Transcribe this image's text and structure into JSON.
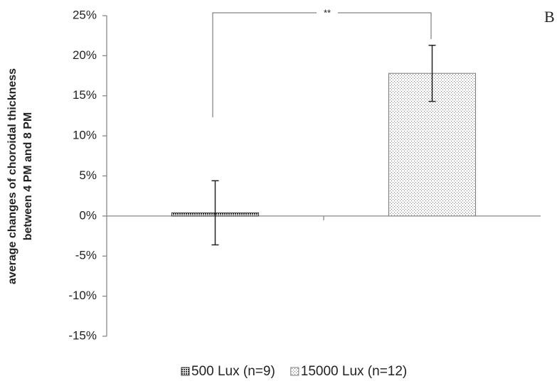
{
  "chart_data": {
    "type": "bar",
    "ylabel": [
      "average changes of choroidal thickness",
      "between 4 PM and 8 PM"
    ],
    "categories": [
      null,
      null
    ],
    "series": [
      {
        "name": "500 Lux (n=9)",
        "color": "#333333",
        "pattern": "checker",
        "values": [
          0.4,
          null
        ],
        "errors": [
          4,
          null
        ]
      },
      {
        "name": "15000 Lux (n=12)",
        "color": "#777777",
        "pattern": "dots",
        "values": [
          null,
          17.8
        ],
        "errors": [
          null,
          3.5
        ]
      }
    ],
    "ylim": [
      -15,
      25
    ],
    "yticks": [
      {
        "value": -15,
        "label": "-15%"
      },
      {
        "value": -10,
        "label": "-10%"
      },
      {
        "value": -5,
        "label": "-5%"
      },
      {
        "value": 0,
        "label": "0%"
      },
      {
        "value": 5,
        "label": "5%"
      },
      {
        "value": 10,
        "label": "10%"
      },
      {
        "value": 15,
        "label": "15%"
      },
      {
        "value": 20,
        "label": "20%"
      },
      {
        "value": 25,
        "label": "25%"
      }
    ],
    "annotations": {
      "significance": "**",
      "panel": "B"
    },
    "legend": "bottom"
  }
}
